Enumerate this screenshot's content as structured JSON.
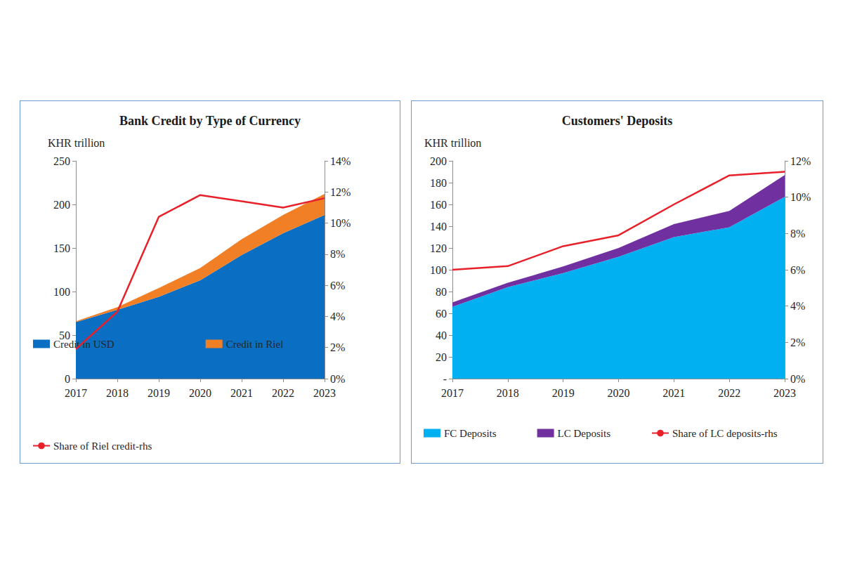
{
  "chart_data": [
    {
      "type": "area",
      "title": "Bank Credit by Type of Currency",
      "y_label": "KHR trillion",
      "categories": [
        "2017",
        "2018",
        "2019",
        "2020",
        "2021",
        "2022",
        "2023"
      ],
      "stacked": true,
      "grid": false,
      "legend": "bottom",
      "series": [
        {
          "name": "Credit in USD",
          "type": "area",
          "color": "#0a6fc2",
          "values": [
            65,
            79,
            94,
            113,
            142,
            167,
            188
          ]
        },
        {
          "name": "Credit in Riel",
          "type": "area",
          "color": "#f07f26",
          "values": [
            1,
            3,
            10,
            14,
            18,
            21,
            24
          ]
        },
        {
          "name": "Share of Riel credit-rhs",
          "type": "line",
          "axis": "y2",
          "color": "#e8202a",
          "values": [
            1.9,
            4.3,
            10.4,
            11.8,
            11.4,
            11.0,
            11.6
          ]
        }
      ],
      "ylim": [
        0,
        250
      ],
      "yticks": [
        0,
        50,
        100,
        150,
        200,
        250
      ],
      "y2lim": [
        0,
        14
      ],
      "y2ticks": [
        {
          "value": 0,
          "label": "0%"
        },
        {
          "value": 2,
          "label": "2%"
        },
        {
          "value": 4,
          "label": "4%"
        },
        {
          "value": 6,
          "label": "6%"
        },
        {
          "value": 8,
          "label": "8%"
        },
        {
          "value": 10,
          "label": "10%"
        },
        {
          "value": 12,
          "label": "12%"
        },
        {
          "value": 14,
          "label": "14%"
        }
      ]
    },
    {
      "type": "area",
      "title": "Customers' Deposits",
      "y_label": "KHR trillion",
      "categories": [
        "2017",
        "2018",
        "2019",
        "2020",
        "2021",
        "2022",
        "2023"
      ],
      "stacked": true,
      "grid": false,
      "legend": "bottom",
      "series": [
        {
          "name": "FC Deposits",
          "type": "area",
          "color": "#00b0f0",
          "values": [
            66,
            84,
            97,
            112,
            130,
            139,
            167
          ]
        },
        {
          "name": "LC Deposits",
          "type": "area",
          "color": "#7030a0",
          "values": [
            4,
            4,
            6,
            8,
            12,
            15,
            20
          ]
        },
        {
          "name": "Share of LC deposits-rhs",
          "type": "line",
          "axis": "y2",
          "color": "#e8202a",
          "values": [
            6.0,
            6.2,
            7.3,
            7.9,
            9.6,
            11.2,
            11.4
          ]
        }
      ],
      "ylim": [
        0,
        200
      ],
      "yticks": [
        {
          "value": 0,
          "label": "-"
        },
        20,
        40,
        60,
        80,
        100,
        120,
        140,
        160,
        180,
        200
      ],
      "y2lim": [
        0,
        12
      ],
      "y2ticks": [
        {
          "value": 0,
          "label": "0%"
        },
        {
          "value": 2,
          "label": "2%"
        },
        {
          "value": 4,
          "label": "4%"
        },
        {
          "value": 6,
          "label": "6%"
        },
        {
          "value": 8,
          "label": "8%"
        },
        {
          "value": 10,
          "label": "10%"
        },
        {
          "value": 12,
          "label": "12%"
        }
      ]
    }
  ]
}
